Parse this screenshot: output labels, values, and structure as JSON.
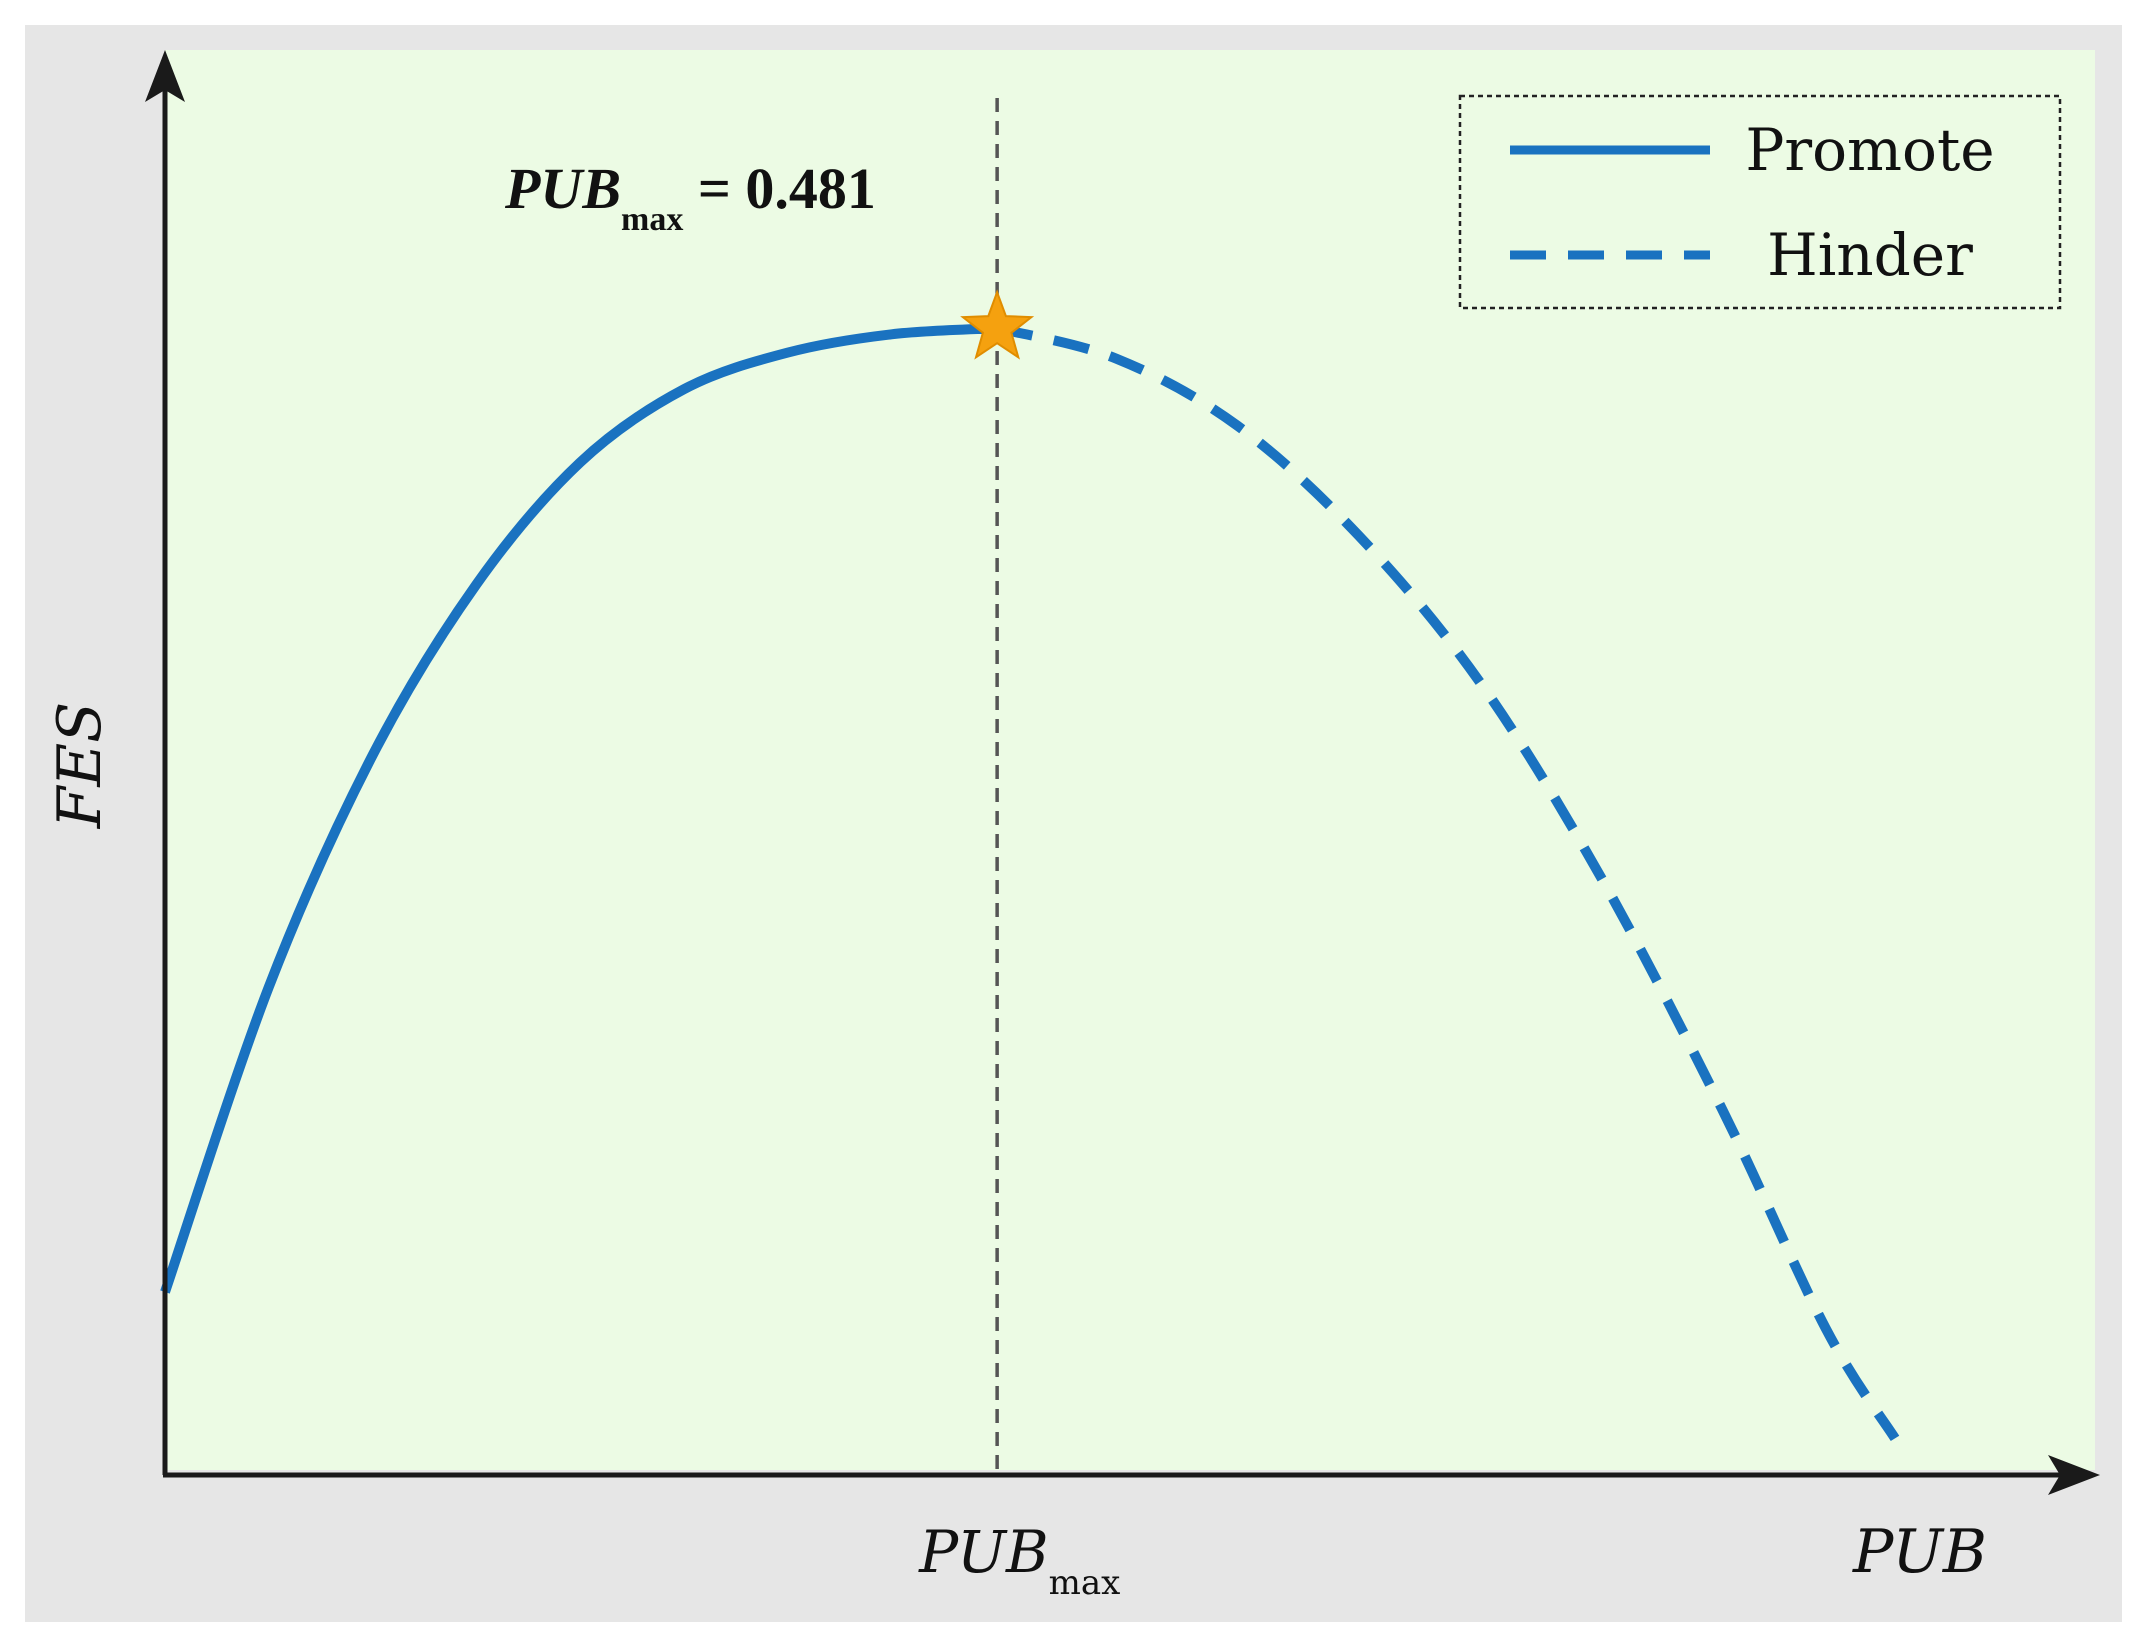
{
  "chart_data": {
    "type": "line",
    "title": "",
    "xlabel": "PUB",
    "ylabel": "FES",
    "xlim": [
      0,
      1
    ],
    "ylim": [
      0,
      1
    ],
    "grid": false,
    "legend": {
      "placement": "top-right",
      "entries": [
        {
          "label": "Promote",
          "style": "solid"
        },
        {
          "label": "Hinder",
          "style": "dashed"
        }
      ]
    },
    "series": [
      {
        "name": "Promote",
        "style": "solid",
        "color": "#1a72c0",
        "x": [
          0.0,
          0.06,
          0.12,
          0.18,
          0.24,
          0.3,
          0.36,
          0.42,
          0.481
        ],
        "y": [
          0.15,
          0.4,
          0.59,
          0.73,
          0.83,
          0.89,
          0.92,
          0.935,
          0.94
        ]
      },
      {
        "name": "Hinder",
        "style": "dashed",
        "color": "#1a72c0",
        "x": [
          0.481,
          0.55,
          0.62,
          0.69,
          0.76,
          0.83,
          0.9,
          0.96,
          1.0
        ],
        "y": [
          0.94,
          0.915,
          0.86,
          0.77,
          0.65,
          0.49,
          0.3,
          0.12,
          0.03
        ]
      }
    ],
    "peak": {
      "x": 0.481,
      "y": 0.94,
      "marker": "star",
      "marker_color": "#f5a10f"
    },
    "reference_line": {
      "orientation": "vertical",
      "x": 0.481,
      "style": "dashed",
      "color": "#555555"
    },
    "annotation": {
      "base": "PUB",
      "sub": "max",
      "rest": " = 0.481"
    },
    "x_tick_label": {
      "base": "PUB",
      "sub": "max"
    },
    "colors": {
      "frame": "#e6e6e6",
      "plot_bg": "#ecfbe4",
      "axis": "#1a1a1a",
      "line": "#1a72c0",
      "star": "#f5a10f"
    }
  }
}
